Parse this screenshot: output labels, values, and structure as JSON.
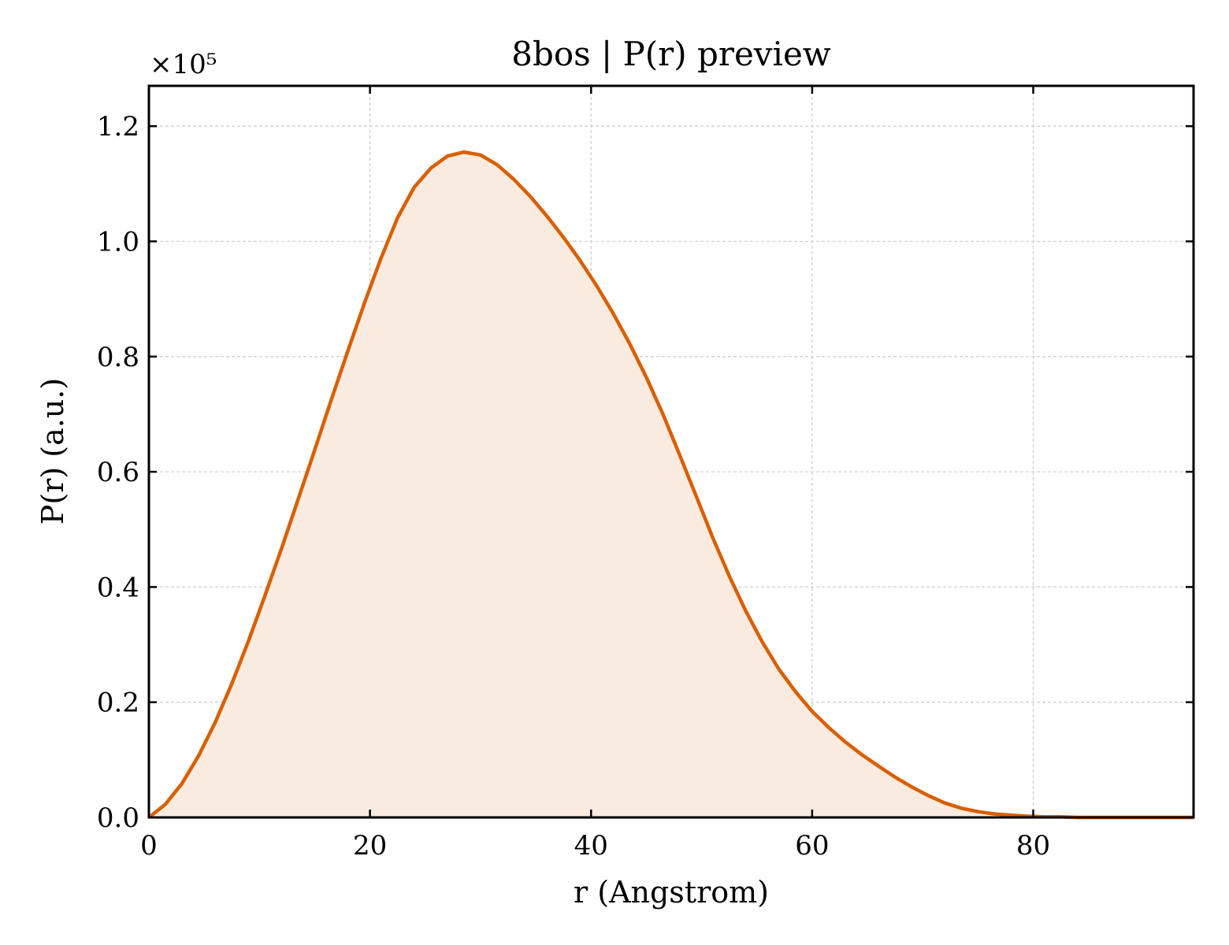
{
  "chart_data": {
    "type": "area",
    "title": "8bos | P(r) preview",
    "xlabel": "r (Angstrom)",
    "ylabel": "P(r) (a.u.)",
    "y_multiplier": "×10⁵",
    "xlim": [
      0,
      94.5
    ],
    "ylim": [
      0,
      1.27
    ],
    "x_ticks": [
      0,
      20,
      40,
      60,
      80
    ],
    "x_tick_labels": [
      "0",
      "20",
      "40",
      "60",
      "80"
    ],
    "y_ticks": [
      0.0,
      0.2,
      0.4,
      0.6,
      0.8,
      1.0,
      1.2
    ],
    "y_tick_labels": [
      "0.0",
      "0.2",
      "0.4",
      "0.6",
      "0.8",
      "1.0",
      "1.2"
    ],
    "grid": true,
    "line_color": "#d95f02",
    "fill_color": "#f9ebdf",
    "series": [
      {
        "x": [
          0,
          1.5,
          3.0,
          4.5,
          6.0,
          7.5,
          9.0,
          10.5,
          12.0,
          13.5,
          15.0,
          16.5,
          18.0,
          19.5,
          21.0,
          22.5,
          24.0,
          25.5,
          27.0,
          28.5,
          30.0,
          31.5,
          33.0,
          34.5,
          36.0,
          37.5,
          39.0,
          40.5,
          42.0,
          43.5,
          45.0,
          46.5,
          48.0,
          49.5,
          51.0,
          52.5,
          54.0,
          55.5,
          57.0,
          58.5,
          60.0,
          61.5,
          63.0,
          64.5,
          66.0,
          67.5,
          69.0,
          70.5,
          72.0,
          73.5,
          75.0,
          76.5,
          78.0,
          79.5,
          81.0,
          82.5,
          84.0,
          85.5,
          87.0,
          88.5,
          90.0,
          91.5,
          93.0,
          94.5
        ],
        "values": [
          0.0,
          0.023,
          0.059,
          0.107,
          0.165,
          0.232,
          0.306,
          0.385,
          0.467,
          0.552,
          0.638,
          0.725,
          0.81,
          0.893,
          0.971,
          1.041,
          1.094,
          1.127,
          1.148,
          1.155,
          1.15,
          1.133,
          1.108,
          1.078,
          1.044,
          1.007,
          0.967,
          0.923,
          0.875,
          0.822,
          0.764,
          0.7,
          0.63,
          0.558,
          0.486,
          0.419,
          0.358,
          0.304,
          0.257,
          0.218,
          0.184,
          0.156,
          0.131,
          0.109,
          0.089,
          0.07,
          0.053,
          0.038,
          0.025,
          0.016,
          0.01,
          0.006,
          0.004,
          0.002,
          0.001,
          0.001,
          0.0,
          0.0,
          0.0,
          0.0,
          0.0,
          0.0,
          0.0,
          0.0
        ]
      }
    ]
  }
}
